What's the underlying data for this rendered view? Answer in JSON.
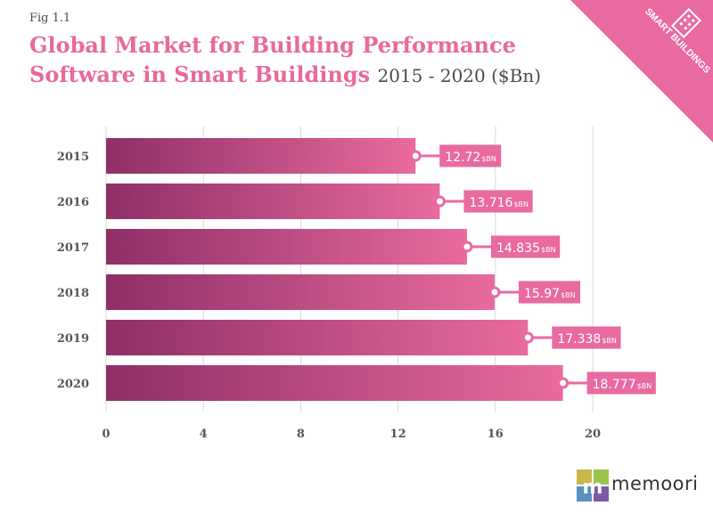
{
  "figure": {
    "label": "Fig 1.1",
    "title": "Global Market for Building Performance Software in Smart Buildings",
    "subtitle": "2015 - 2020 ($Bn)"
  },
  "badge": {
    "text": "SMART BUILDINGS",
    "icon": "building-icon",
    "color": "#e96aa0"
  },
  "brand": {
    "name": "memoori",
    "icon": "memoori-logo-icon"
  },
  "colors": {
    "accent": "#e8699a",
    "bar_start": "#8e2f66",
    "bar_end": "#e96a9e",
    "callout": "#e96aa0"
  },
  "chart_data": {
    "type": "bar",
    "orientation": "horizontal",
    "title": "Global Market for Building Performance Software in Smart Buildings",
    "subtitle": "2015 - 2020 ($Bn)",
    "categories": [
      "2015",
      "2016",
      "2017",
      "2018",
      "2019",
      "2020"
    ],
    "values": [
      12.72,
      13.716,
      14.835,
      15.97,
      17.338,
      18.777
    ],
    "value_labels": [
      "12.72",
      "13.716",
      "14.835",
      "15.97",
      "17.338",
      "18.777"
    ],
    "value_unit": "$BN",
    "xlim": [
      0,
      20
    ],
    "xticks": [
      0,
      4,
      8,
      12,
      16,
      20
    ],
    "xlabel": "",
    "ylabel": "",
    "grid": true
  }
}
